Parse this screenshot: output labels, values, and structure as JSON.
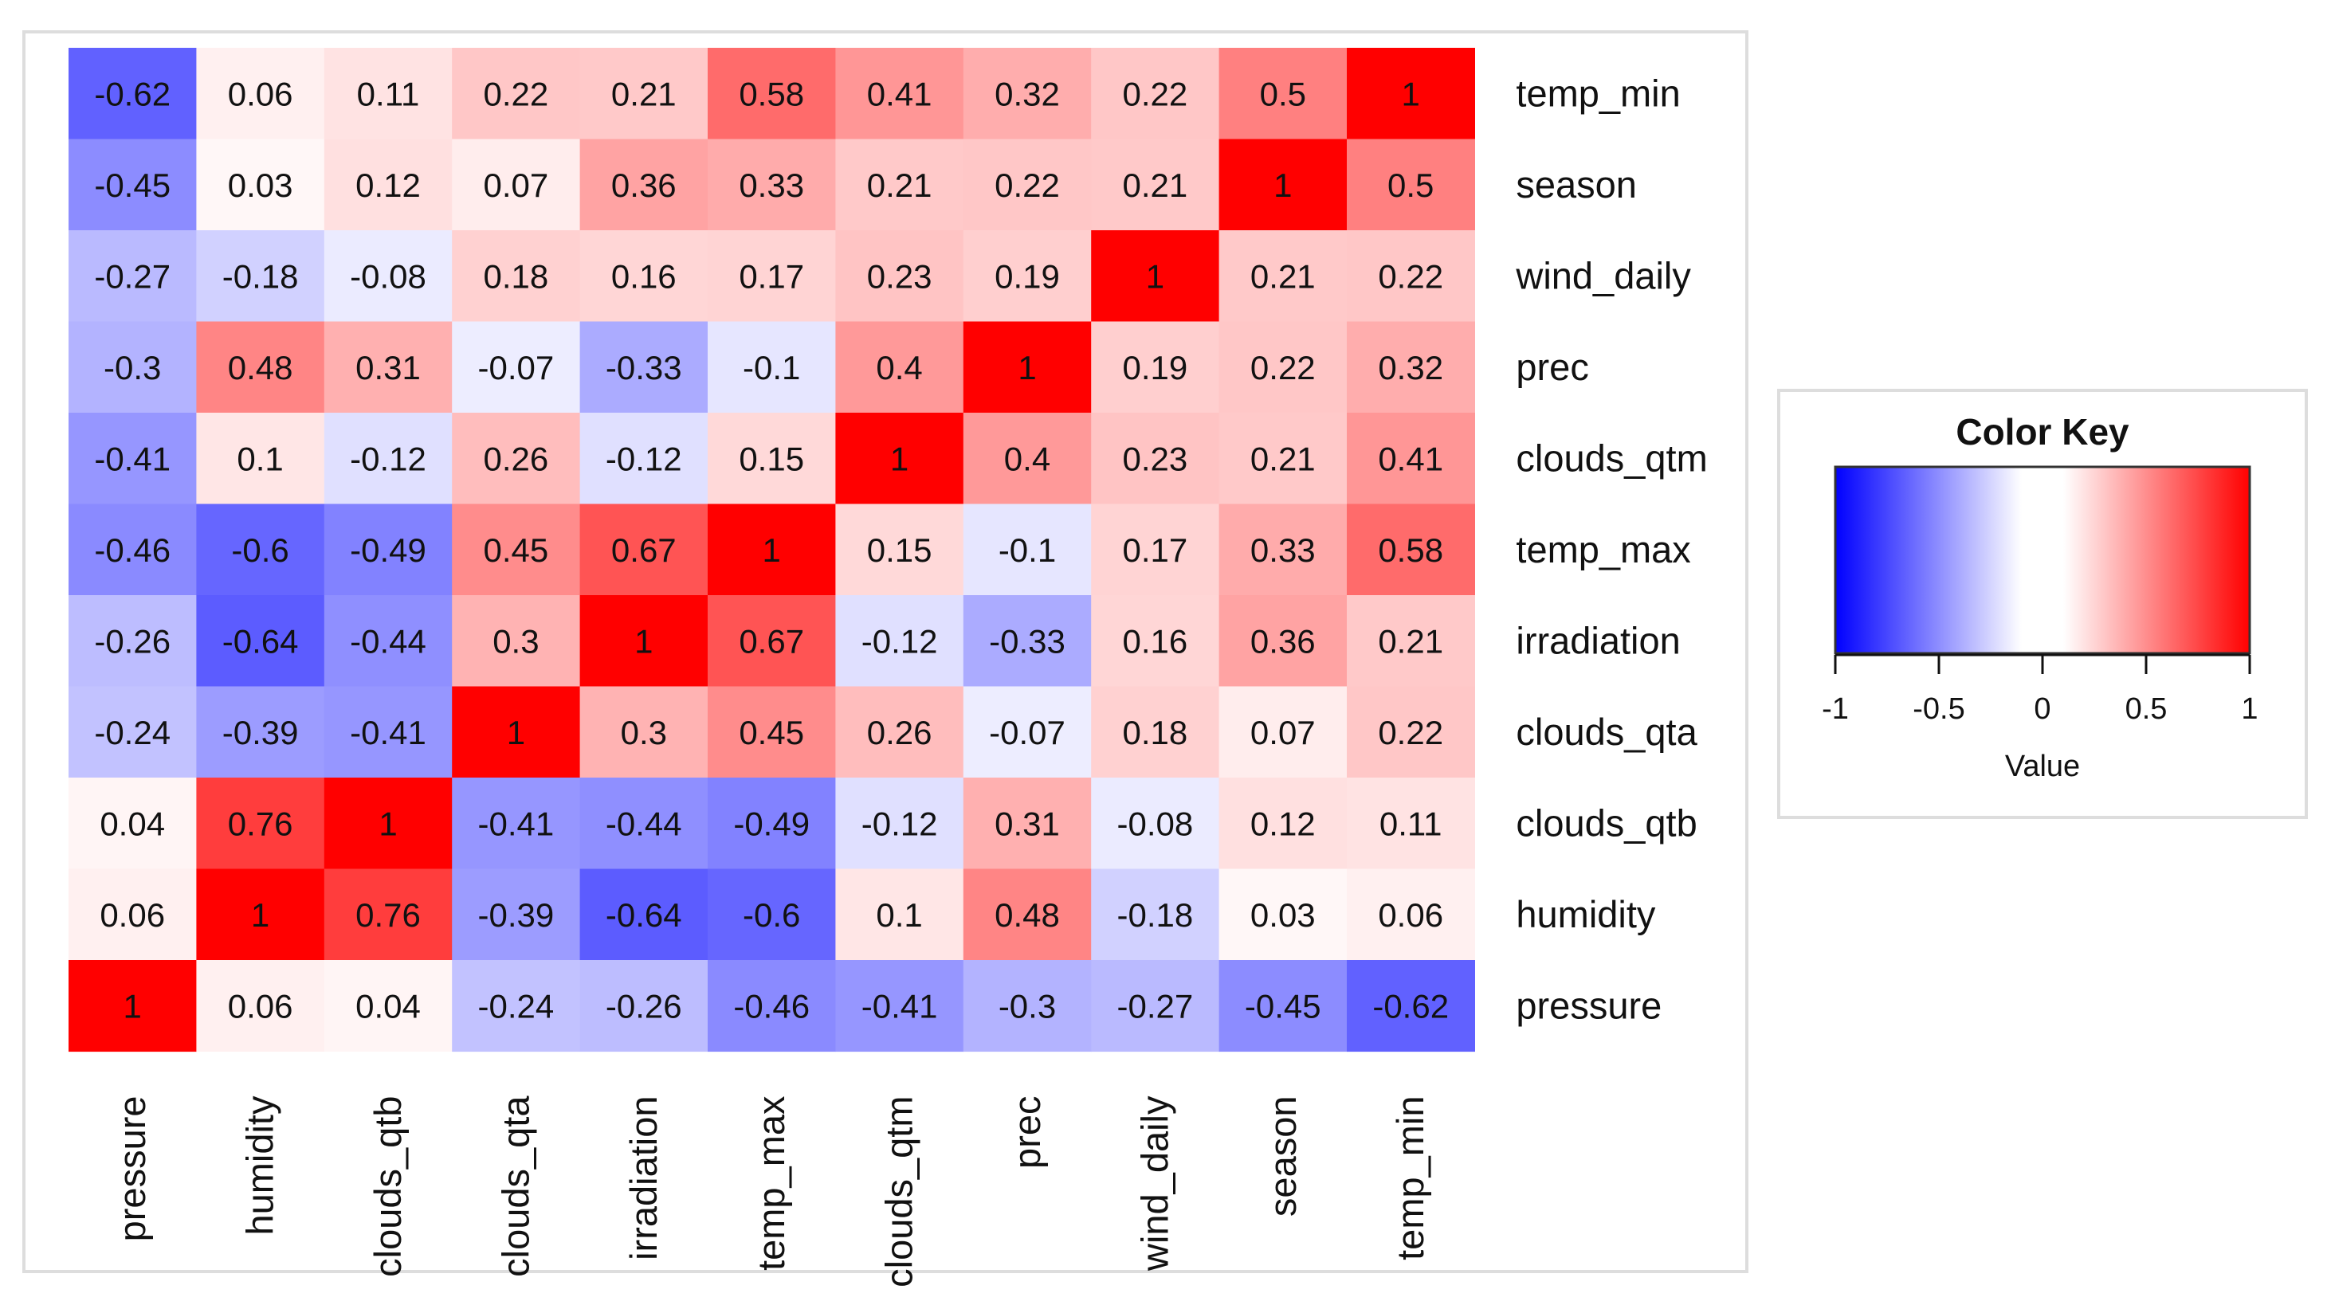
{
  "chart_data": {
    "type": "heatmap",
    "title": "",
    "row_labels": [
      "temp_min",
      "season",
      "wind_daily",
      "prec",
      "clouds_qtm",
      "temp_max",
      "irradiation",
      "clouds_qta",
      "clouds_qtb",
      "humidity",
      "pressure"
    ],
    "col_labels": [
      "pressure",
      "humidity",
      "clouds_qtb",
      "clouds_qta",
      "irradiation",
      "temp_max",
      "clouds_qtm",
      "prec",
      "wind_daily",
      "season",
      "temp_min"
    ],
    "values": [
      [
        -0.62,
        0.06,
        0.11,
        0.22,
        0.21,
        0.58,
        0.41,
        0.32,
        0.22,
        0.5,
        1
      ],
      [
        -0.45,
        0.03,
        0.12,
        0.07,
        0.36,
        0.33,
        0.21,
        0.22,
        0.21,
        1,
        0.5
      ],
      [
        -0.27,
        -0.18,
        -0.08,
        0.18,
        0.16,
        0.17,
        0.23,
        0.19,
        1,
        0.21,
        0.22
      ],
      [
        -0.3,
        0.48,
        0.31,
        -0.07,
        -0.33,
        -0.1,
        0.4,
        1,
        0.19,
        0.22,
        0.32
      ],
      [
        -0.41,
        0.1,
        -0.12,
        0.26,
        -0.12,
        0.15,
        1,
        0.4,
        0.23,
        0.21,
        0.41
      ],
      [
        -0.46,
        -0.6,
        -0.49,
        0.45,
        0.67,
        1,
        0.15,
        -0.1,
        0.17,
        0.33,
        0.58
      ],
      [
        -0.26,
        -0.64,
        -0.44,
        0.3,
        1,
        0.67,
        -0.12,
        -0.33,
        0.16,
        0.36,
        0.21
      ],
      [
        -0.24,
        -0.39,
        -0.41,
        1,
        0.3,
        0.45,
        0.26,
        -0.07,
        0.18,
        0.07,
        0.22
      ],
      [
        0.04,
        0.76,
        1,
        -0.41,
        -0.44,
        -0.49,
        -0.12,
        0.31,
        -0.08,
        0.12,
        0.11
      ],
      [
        0.06,
        1,
        0.76,
        -0.39,
        -0.64,
        -0.6,
        0.1,
        0.48,
        -0.18,
        0.03,
        0.06
      ],
      [
        1,
        0.06,
        0.04,
        -0.24,
        -0.26,
        -0.46,
        -0.41,
        -0.3,
        -0.27,
        -0.45,
        -0.62
      ]
    ],
    "value_range": [
      -1,
      1
    ],
    "color_scale": {
      "low": "#0000ff",
      "mid": "#ffffff",
      "high": "#ff0000"
    },
    "color_key": {
      "title": "Color Key",
      "xlabel": "Value",
      "ticks": [
        -1,
        -0.5,
        0,
        0.5,
        1
      ],
      "tick_labels": [
        "-1",
        "-0.5",
        "0",
        "0.5",
        "1"
      ]
    }
  }
}
